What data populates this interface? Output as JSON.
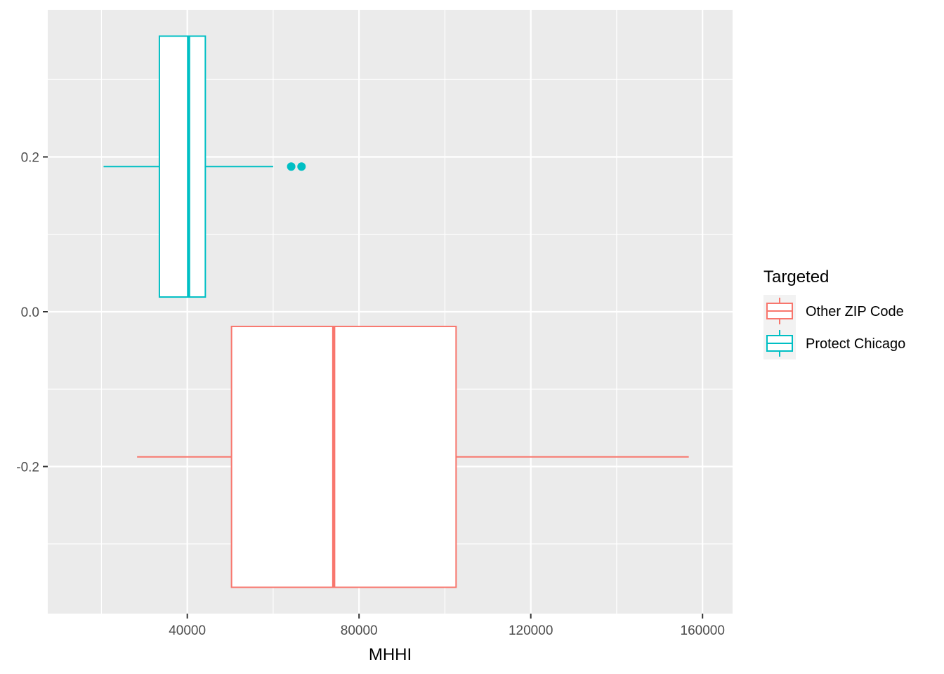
{
  "chart_data": {
    "type": "boxplot",
    "orientation": "horizontal",
    "xlabel": "MHHI",
    "ylabel": "",
    "xlim": [
      7500,
      167000
    ],
    "ylim": [
      -0.39,
      0.39
    ],
    "x_ticks": [
      40000,
      80000,
      120000,
      160000
    ],
    "x_tick_labels": [
      "40000",
      "80000",
      "120000",
      "160000"
    ],
    "y_ticks": [
      -0.2,
      0.0,
      0.2
    ],
    "y_tick_labels": [
      "-0.2",
      "0.0",
      "0.2"
    ],
    "grid": true,
    "legend": {
      "title": "Targeted",
      "position": "right",
      "entries": [
        {
          "label": "Other ZIP Code",
          "color": "#F8766D"
        },
        {
          "label": "Protect Chicago",
          "color": "#00BFC4"
        }
      ]
    },
    "boxes": [
      {
        "group": "Protect Chicago",
        "color": "#00BFC4",
        "whisker_low": 20500,
        "q1": 33500,
        "median": 40300,
        "q3": 44200,
        "whisker_high": 60000,
        "outliers": [
          64200,
          66600
        ],
        "y_range": [
          0.019,
          0.356
        ],
        "y_center": 0.1875
      },
      {
        "group": "Other ZIP Code",
        "color": "#F8766D",
        "whisker_low": 28300,
        "q1": 50300,
        "median": 74100,
        "q3": 102600,
        "whisker_high": 156800,
        "outliers": [],
        "y_range": [
          -0.356,
          -0.019
        ],
        "y_center": -0.1875
      }
    ]
  }
}
